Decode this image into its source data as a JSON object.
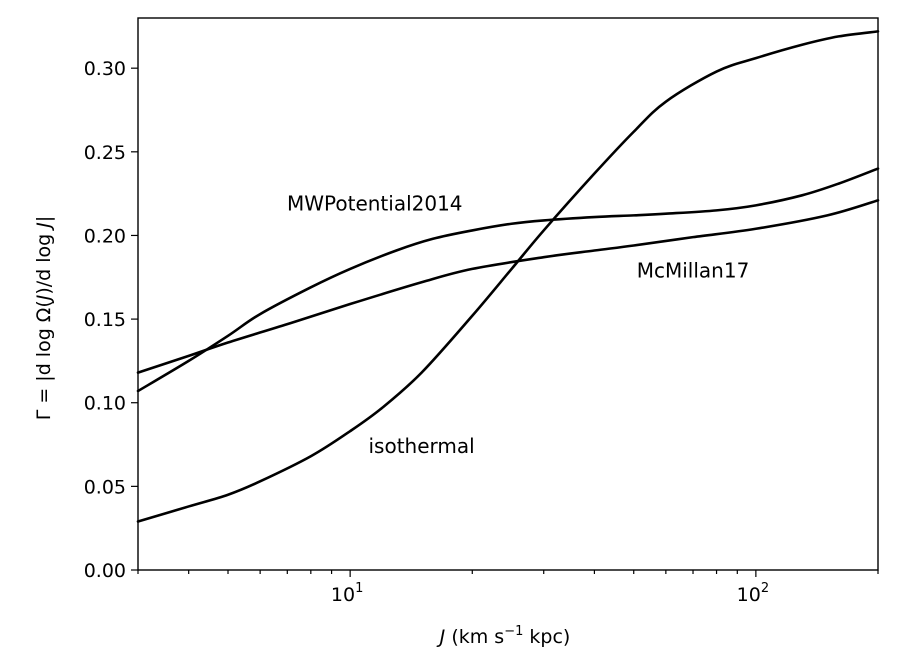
{
  "chart_data": {
    "type": "line",
    "xscale": "log",
    "xlim": [
      3,
      200
    ],
    "ylim": [
      0.0,
      0.33
    ],
    "xlabel": "J (km s⁻¹ kpc)",
    "ylabel": "Γ = |d log Ω(J)/d log J|",
    "grid": false,
    "legend": "none (inline annotations)",
    "x_ticks": [
      {
        "value": 10,
        "base": "10",
        "exp": "1"
      },
      {
        "value": 100,
        "base": "10",
        "exp": "2"
      }
    ],
    "y_ticks": [
      0.0,
      0.05,
      0.1,
      0.15,
      0.2,
      0.25,
      0.3
    ],
    "y_tick_labels": [
      "0.00",
      "0.05",
      "0.10",
      "0.15",
      "0.20",
      "0.25",
      "0.30"
    ],
    "series": [
      {
        "name": "MWPotential2014",
        "x": [
          3,
          4,
          5,
          6,
          8,
          10,
          13,
          16,
          20,
          25,
          30,
          40,
          50,
          60,
          80,
          100,
          130,
          160,
          200
        ],
        "y": [
          0.107,
          0.125,
          0.14,
          0.153,
          0.169,
          0.18,
          0.191,
          0.198,
          0.203,
          0.207,
          0.209,
          0.211,
          0.212,
          0.213,
          0.215,
          0.218,
          0.224,
          0.231,
          0.24
        ]
      },
      {
        "name": "McMillan17",
        "x": [
          3,
          4,
          5,
          7,
          10,
          15,
          20,
          30,
          40,
          50,
          70,
          100,
          150,
          200
        ],
        "y": [
          0.118,
          0.128,
          0.136,
          0.147,
          0.159,
          0.172,
          0.18,
          0.187,
          0.191,
          0.194,
          0.199,
          0.204,
          0.212,
          0.221
        ]
      },
      {
        "name": "isothermal",
        "x": [
          3,
          4,
          5,
          6,
          8,
          10,
          12,
          15,
          20,
          25,
          30,
          40,
          50,
          60,
          80,
          100,
          130,
          160,
          200
        ],
        "y": [
          0.029,
          0.038,
          0.045,
          0.053,
          0.068,
          0.083,
          0.097,
          0.118,
          0.152,
          0.18,
          0.203,
          0.237,
          0.262,
          0.28,
          0.298,
          0.306,
          0.314,
          0.319,
          0.322
        ]
      }
    ],
    "annotations": [
      {
        "text": "MWPotential2014",
        "x": 11.5,
        "y": 0.215
      },
      {
        "text": "McMillan17",
        "x": 70,
        "y": 0.175
      },
      {
        "text": "isothermal",
        "x": 15,
        "y": 0.07
      }
    ]
  }
}
